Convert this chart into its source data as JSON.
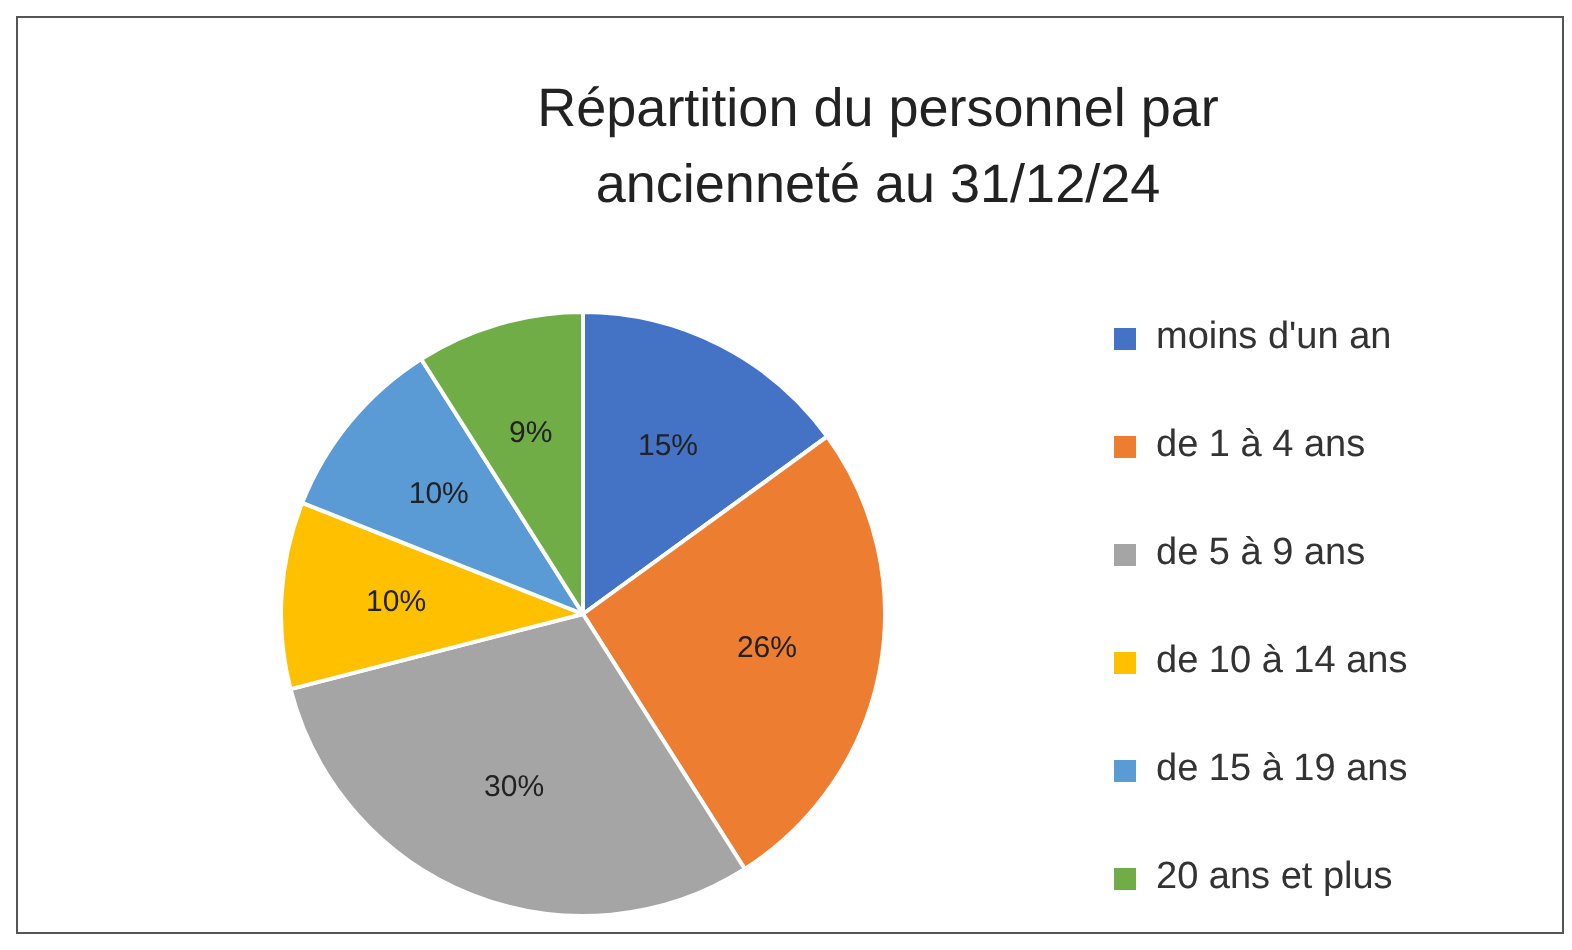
{
  "chart_data": {
    "type": "pie",
    "title": "Répartition du personnel par ancienneté au 31/12/24",
    "categories": [
      "moins d'un an",
      "de 1 à 4 ans",
      "de 5 à 9 ans",
      "de 10 à 14 ans",
      "de 15 à 19 ans",
      "20 ans et plus"
    ],
    "values": [
      15,
      26,
      30,
      10,
      10,
      9
    ],
    "colors": [
      "#4472c4",
      "#ed7d31",
      "#a5a5a5",
      "#ffc000",
      "#5b9bd5",
      "#70ad47"
    ],
    "value_labels": [
      "15%",
      "26%",
      "30%",
      "10%",
      "10%",
      "9%"
    ],
    "legend": "right"
  }
}
